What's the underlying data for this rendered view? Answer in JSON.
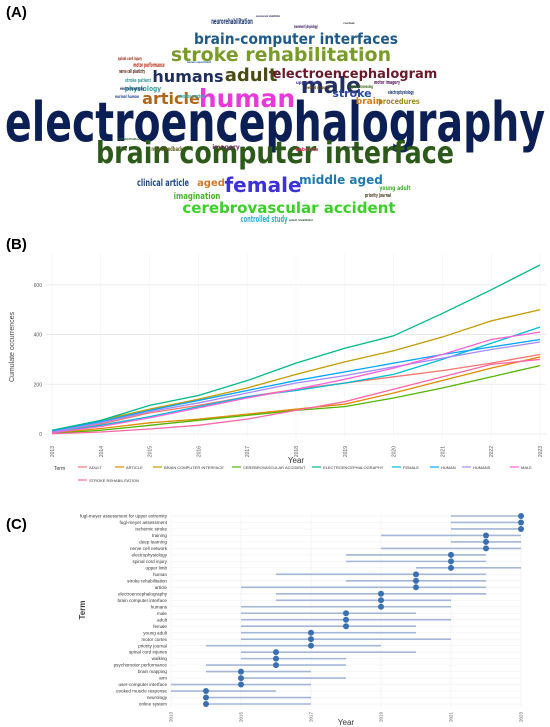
{
  "panels": {
    "a": "(A)",
    "b": "(B)",
    "c": "(C)"
  },
  "chart_data": [
    {
      "type": "wordcloud",
      "words": [
        {
          "text": "electroencephalography",
          "weight": 54,
          "color": "#0c1f55"
        },
        {
          "text": "brain computer interface",
          "weight": 30,
          "color": "#2d5a1a"
        },
        {
          "text": "human",
          "weight": 25,
          "color": "#e83ad8"
        },
        {
          "text": "male",
          "weight": 22,
          "color": "#1f3060"
        },
        {
          "text": "female",
          "weight": 20,
          "color": "#3c32d8"
        },
        {
          "text": "stroke rehabilitation",
          "weight": 19,
          "color": "#7a9a2a"
        },
        {
          "text": "adult",
          "weight": 18,
          "color": "#4b4b16"
        },
        {
          "text": "humans",
          "weight": 16,
          "color": "#1e2f5c"
        },
        {
          "text": "brain-computer interfaces",
          "weight": 15,
          "color": "#1f5a86"
        },
        {
          "text": "cerebrovascular accident",
          "weight": 15,
          "color": "#3ccf2a"
        },
        {
          "text": "article",
          "weight": 16,
          "color": "#b0661a"
        },
        {
          "text": "electroencephalogram",
          "weight": 13,
          "color": "#6a1a2a"
        },
        {
          "text": "middle aged",
          "weight": 12,
          "color": "#1f7ab0"
        },
        {
          "text": "stroke",
          "weight": 11,
          "color": "#2a4a9a"
        },
        {
          "text": "clinical article",
          "weight": 10,
          "color": "#1f4a80"
        },
        {
          "text": "aged",
          "weight": 10,
          "color": "#cf7a2a"
        },
        {
          "text": "imagination",
          "weight": 9,
          "color": "#4ab02a"
        },
        {
          "text": "controlled study",
          "weight": 9,
          "color": "#2ab0d0"
        },
        {
          "text": "neurorehabilitation",
          "weight": 8,
          "color": "#1f3a70"
        },
        {
          "text": "brain",
          "weight": 9,
          "color": "#d0801a"
        },
        {
          "text": "procedures",
          "weight": 8,
          "color": "#9a8a1a"
        },
        {
          "text": "physiology",
          "weight": 7,
          "color": "#3aa0a0"
        },
        {
          "text": "motor performance",
          "weight": 6,
          "color": "#c0301a"
        },
        {
          "text": "neurofeedback",
          "weight": 6,
          "color": "#5a5a1a"
        },
        {
          "text": "imagery",
          "weight": 6,
          "color": "#7a2a6a"
        },
        {
          "text": "young adult",
          "weight": 6,
          "color": "#3ab02a"
        },
        {
          "text": "electrophysiology",
          "weight": 5,
          "color": "#1f3a70"
        },
        {
          "text": "motor imagery",
          "weight": 5,
          "color": "#5a1a5a"
        },
        {
          "text": "motor cortex",
          "weight": 5,
          "color": "#2ab0c0"
        },
        {
          "text": "stroke patient",
          "weight": 5,
          "color": "#3a9a9a"
        },
        {
          "text": "nerve cell plasticity",
          "weight": 5,
          "color": "#5a2a1a"
        },
        {
          "text": "spinal cord injury",
          "weight": 4,
          "color": "#a02a1a"
        },
        {
          "text": "signal processing",
          "weight": 4,
          "color": "#3a6a1a"
        },
        {
          "text": "robotics",
          "weight": 5,
          "color": "#cf3a5a"
        },
        {
          "text": "priority journal",
          "weight": 5,
          "color": "#4a3a1a"
        },
        {
          "text": "upper limb",
          "weight": 4,
          "color": "#3a3a9a"
        },
        {
          "text": "electromyography",
          "weight": 4,
          "color": "#1f3a70"
        },
        {
          "text": "normal human",
          "weight": 4,
          "color": "#2a4a9a"
        },
        {
          "text": "movement (physiology)",
          "weight": 4,
          "color": "#3a1a5a"
        },
        {
          "text": "neuromuscular rehabilitation",
          "weight": 3,
          "color": "#3a2a5a"
        },
        {
          "text": "evoked response",
          "weight": 4,
          "color": "#5a3a1a"
        },
        {
          "text": "patient rehabilitation",
          "weight": 3,
          "color": "#2a5a3a"
        },
        {
          "text": "human experiment",
          "weight": 3,
          "color": "#1a5a9a"
        },
        {
          "text": "rehabilitation",
          "weight": 3,
          "color": "#2a6a2a"
        },
        {
          "text": "hand",
          "weight": 3,
          "color": "#3a3a3a"
        },
        {
          "text": "algorithm",
          "weight": 3,
          "color": "#3a3a3a"
        },
        {
          "text": "review",
          "weight": 3,
          "color": "#3a3a3a"
        }
      ]
    },
    {
      "type": "line",
      "x": [
        2013,
        2014,
        2015,
        2016,
        2017,
        2018,
        2019,
        2020,
        2021,
        2022,
        2023
      ],
      "xlabel": "Year",
      "ylabel": "Cumulate occurrences",
      "ylim": [
        0,
        700
      ],
      "yticks": [
        0,
        200,
        400,
        600
      ],
      "legend_title": "Term",
      "grid": true,
      "legend_position": "bottom",
      "series": [
        {
          "name": "ADULT",
          "color": "#f8766d",
          "values": [
            8,
            40,
            85,
            115,
            150,
            180,
            205,
            230,
            255,
            285,
            320
          ]
        },
        {
          "name": "ARTICLE",
          "color": "#e08a00",
          "values": [
            4,
            22,
            45,
            60,
            80,
            100,
            120,
            165,
            215,
            265,
            310
          ]
        },
        {
          "name": "BRAIN COMPUTER INTERFACE",
          "color": "#c49a00",
          "values": [
            12,
            55,
            100,
            140,
            185,
            240,
            290,
            335,
            390,
            455,
            500
          ]
        },
        {
          "name": "CEREBROVASCULAR ACCIDENT",
          "color": "#53b400",
          "values": [
            2,
            15,
            35,
            55,
            75,
            95,
            110,
            145,
            185,
            230,
            275
          ]
        },
        {
          "name": "ELECTROENCEPHALOGRAPHY",
          "color": "#00b889",
          "values": [
            15,
            55,
            115,
            155,
            215,
            285,
            345,
            395,
            485,
            580,
            680
          ]
        },
        {
          "name": "FEMALE",
          "color": "#00bcd8",
          "values": [
            6,
            35,
            70,
            110,
            150,
            175,
            205,
            240,
            300,
            365,
            430
          ]
        },
        {
          "name": "HUMAN",
          "color": "#00a5ff",
          "values": [
            10,
            50,
            95,
            135,
            175,
            215,
            250,
            285,
            320,
            350,
            380
          ]
        },
        {
          "name": "HUMANS",
          "color": "#a58aff",
          "values": [
            8,
            45,
            90,
            125,
            165,
            205,
            235,
            270,
            305,
            340,
            370
          ]
        },
        {
          "name": "MALE",
          "color": "#fb61d7",
          "values": [
            5,
            30,
            65,
            105,
            145,
            180,
            220,
            265,
            320,
            380,
            410
          ]
        },
        {
          "name": "STROKE REHABILITATION",
          "color": "#ff66a8",
          "values": [
            1,
            8,
            20,
            35,
            60,
            95,
            130,
            180,
            230,
            280,
            300
          ]
        }
      ]
    },
    {
      "type": "timeline",
      "xlabel": "Year",
      "ylabel": "Term",
      "xlim": [
        2013,
        2023
      ],
      "xticks": [
        2013,
        2015,
        2017,
        2019,
        2021,
        2023
      ],
      "terms": [
        {
          "term": "fugl-meyer assessment for upper extremity",
          "start": 2021,
          "end": 2023,
          "peak": 2023
        },
        {
          "term": "fugl-meyer assessment",
          "start": 2021,
          "end": 2023,
          "peak": 2023
        },
        {
          "term": "ischemic stroke",
          "start": 2021,
          "end": 2023,
          "peak": 2023
        },
        {
          "term": "training",
          "start": 2019,
          "end": 2023,
          "peak": 2022
        },
        {
          "term": "deep learning",
          "start": 2021,
          "end": 2023,
          "peak": 2022
        },
        {
          "term": "nerve cell network",
          "start": 2019,
          "end": 2023,
          "peak": 2022
        },
        {
          "term": "electrophysiology",
          "start": 2018,
          "end": 2022,
          "peak": 2021
        },
        {
          "term": "spinal cord injury",
          "start": 2018,
          "end": 2022,
          "peak": 2021
        },
        {
          "term": "upper limb",
          "start": 2020,
          "end": 2023,
          "peak": 2021
        },
        {
          "term": "human",
          "start": 2016,
          "end": 2022,
          "peak": 2020
        },
        {
          "term": "stroke rehabilitation",
          "start": 2018,
          "end": 2022,
          "peak": 2020
        },
        {
          "term": "article",
          "start": 2015,
          "end": 2022,
          "peak": 2020
        },
        {
          "term": "electroencephalography",
          "start": 2016,
          "end": 2022,
          "peak": 2019
        },
        {
          "term": "brain computer interface",
          "start": 2016,
          "end": 2021,
          "peak": 2019
        },
        {
          "term": "humans",
          "start": 2015,
          "end": 2021,
          "peak": 2019
        },
        {
          "term": "male",
          "start": 2015,
          "end": 2020,
          "peak": 2018
        },
        {
          "term": "adult",
          "start": 2015,
          "end": 2021,
          "peak": 2018
        },
        {
          "term": "female",
          "start": 2015,
          "end": 2020,
          "peak": 2018
        },
        {
          "term": "young adult",
          "start": 2015,
          "end": 2020,
          "peak": 2017
        },
        {
          "term": "motor cortex",
          "start": 2015,
          "end": 2021,
          "peak": 2017
        },
        {
          "term": "priority journal",
          "start": 2014,
          "end": 2019,
          "peak": 2017
        },
        {
          "term": "spinal cord injuries",
          "start": 2015,
          "end": 2020,
          "peak": 2016
        },
        {
          "term": "walking",
          "start": 2015,
          "end": 2018,
          "peak": 2016
        },
        {
          "term": "psychomotor performance",
          "start": 2014,
          "end": 2018,
          "peak": 2016
        },
        {
          "term": "brain mapping",
          "start": 2014,
          "end": 2017,
          "peak": 2015
        },
        {
          "term": "arm",
          "start": 2015,
          "end": 2018,
          "peak": 2015
        },
        {
          "term": "user-computer interface",
          "start": 2013,
          "end": 2017,
          "peak": 2015
        },
        {
          "term": "evoked muscle response",
          "start": 2013,
          "end": 2016,
          "peak": 2014
        },
        {
          "term": "neurology",
          "start": 2014,
          "end": 2017,
          "peak": 2014
        },
        {
          "term": "online system",
          "start": 2014,
          "end": 2017,
          "peak": 2014
        }
      ]
    }
  ]
}
